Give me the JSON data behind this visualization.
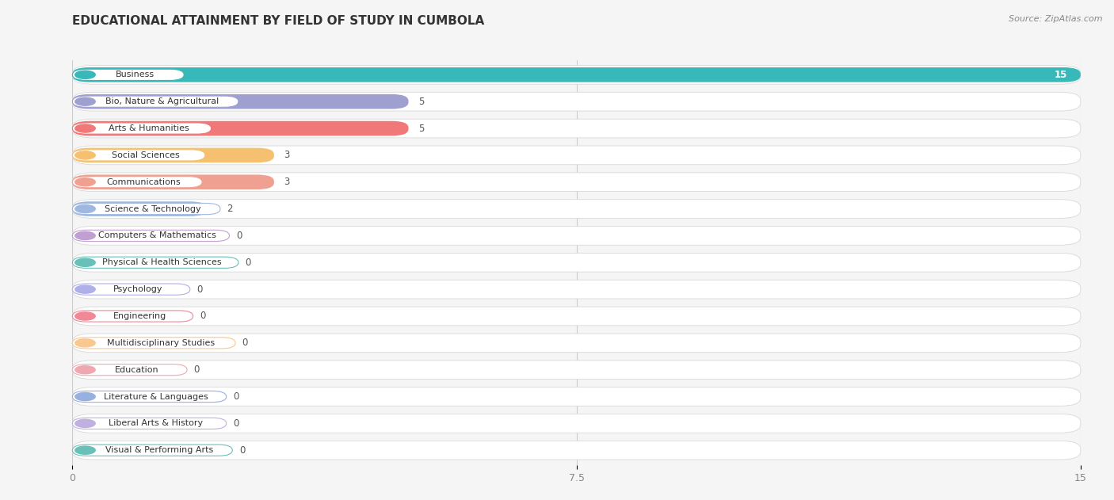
{
  "title": "EDUCATIONAL ATTAINMENT BY FIELD OF STUDY IN CUMBOLA",
  "source": "Source: ZipAtlas.com",
  "categories": [
    "Business",
    "Bio, Nature & Agricultural",
    "Arts & Humanities",
    "Social Sciences",
    "Communications",
    "Science & Technology",
    "Computers & Mathematics",
    "Physical & Health Sciences",
    "Psychology",
    "Engineering",
    "Multidisciplinary Studies",
    "Education",
    "Literature & Languages",
    "Liberal Arts & History",
    "Visual & Performing Arts"
  ],
  "values": [
    15,
    5,
    5,
    3,
    3,
    2,
    0,
    0,
    0,
    0,
    0,
    0,
    0,
    0,
    0
  ],
  "bar_colors": [
    "#38b8b8",
    "#a0a0d0",
    "#f07878",
    "#f5c070",
    "#f0a090",
    "#a0b8e0",
    "#c0a0d0",
    "#68c0b8",
    "#b0b0e8",
    "#f08898",
    "#f8c890",
    "#f0a8b0",
    "#98b0e0",
    "#c0b0e0",
    "#68c0b8"
  ],
  "xlim": [
    0,
    15
  ],
  "xticks": [
    0,
    7.5,
    15
  ],
  "background_color": "#f5f5f5",
  "title_fontsize": 11,
  "label_fontsize": 8,
  "value_fontsize": 8.5
}
